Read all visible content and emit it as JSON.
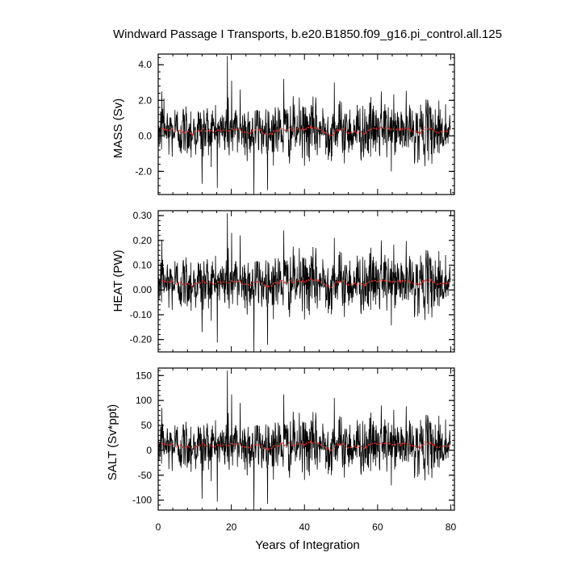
{
  "title": "Windward Passage I Transports, b.e20.B1850.f09_g16.pi_control.all.125",
  "colors": {
    "raw": "#000000",
    "smooth": "#e8302a",
    "frame": "#000000"
  },
  "chart_data": [
    {
      "type": "line",
      "ylabel": "MASS (Sv)",
      "xlabel": "",
      "xlim": [
        0,
        81
      ],
      "ylim": [
        -3.3,
        4.6
      ],
      "yticks": [
        -2.0,
        0.0,
        2.0,
        4.0
      ],
      "ytick_labels": [
        "-2.0",
        "0.0",
        "2.0",
        "4.0"
      ],
      "mean": 0.3,
      "noise_sd": 0.8,
      "smooth_amplitude": 0.3,
      "spikes": [
        {
          "x": 1.0,
          "y": 2.5
        },
        {
          "x": 1.6,
          "y": 2.1
        },
        {
          "x": 12.0,
          "y": -2.7
        },
        {
          "x": 18.9,
          "y": 4.5
        },
        {
          "x": 20.1,
          "y": 3.1
        },
        {
          "x": 22.4,
          "y": 2.6
        },
        {
          "x": 26.2,
          "y": -3.3
        },
        {
          "x": 34.3,
          "y": 3.2
        },
        {
          "x": 48.2,
          "y": 3.0
        },
        {
          "x": 61.0,
          "y": 2.5
        }
      ],
      "series": [
        {
          "values": []
        },
        {
          "values": []
        }
      ]
    },
    {
      "type": "line",
      "ylabel": "HEAT (PW)",
      "xlabel": "",
      "xlim": [
        0,
        81
      ],
      "ylim": [
        -0.25,
        0.32
      ],
      "yticks": [
        -0.2,
        -0.1,
        0.0,
        0.1,
        0.2,
        0.3
      ],
      "ytick_labels": [
        "-0.20",
        "-0.10",
        "0.00",
        "0.10",
        "0.20",
        "0.30"
      ],
      "mean": 0.03,
      "noise_sd": 0.06,
      "smooth_amplitude": 0.02,
      "spikes": [
        {
          "x": 1.0,
          "y": 0.2
        },
        {
          "x": 12.0,
          "y": -0.17
        },
        {
          "x": 18.9,
          "y": 0.31
        },
        {
          "x": 20.1,
          "y": 0.23
        },
        {
          "x": 22.4,
          "y": 0.22
        },
        {
          "x": 26.2,
          "y": -0.25
        },
        {
          "x": 34.3,
          "y": 0.24
        },
        {
          "x": 48.2,
          "y": 0.21
        },
        {
          "x": 61.0,
          "y": 0.2
        }
      ],
      "series": [
        {
          "values": []
        },
        {
          "values": []
        }
      ]
    },
    {
      "type": "line",
      "ylabel": "SALT (Sv*ppt)",
      "xlabel": "Years of Integration",
      "xlim": [
        0,
        81
      ],
      "ylim": [
        -120,
        165
      ],
      "yticks": [
        -100,
        -50,
        0,
        50,
        100,
        150
      ],
      "ytick_labels": [
        "-100",
        "-50",
        "0",
        "50",
        "100",
        "150"
      ],
      "xticks": [
        0,
        20,
        40,
        60,
        80
      ],
      "xtick_labels": [
        "0",
        "20",
        "40",
        "60",
        "80"
      ],
      "mean": 10,
      "noise_sd": 28,
      "smooth_amplitude": 10,
      "spikes": [
        {
          "x": 1.0,
          "y": 85
        },
        {
          "x": 12.0,
          "y": -97
        },
        {
          "x": 18.9,
          "y": 160
        },
        {
          "x": 20.1,
          "y": 112
        },
        {
          "x": 22.4,
          "y": 95
        },
        {
          "x": 26.2,
          "y": -120
        },
        {
          "x": 34.3,
          "y": 112
        },
        {
          "x": 48.2,
          "y": 105
        },
        {
          "x": 61.0,
          "y": 90
        }
      ],
      "series": [
        {
          "values": []
        },
        {
          "values": []
        }
      ]
    }
  ]
}
